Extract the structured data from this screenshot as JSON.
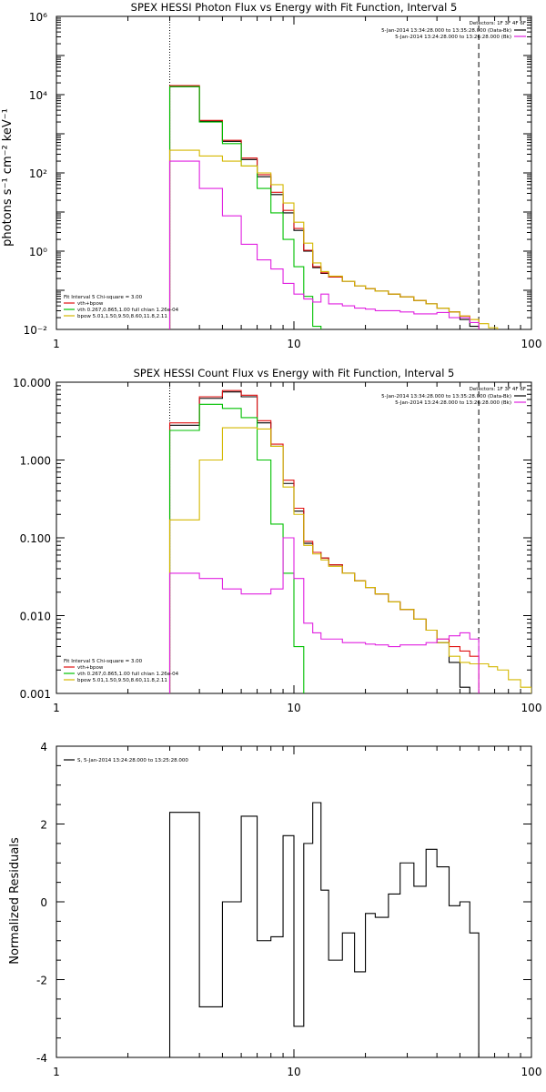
{
  "chart_data": [
    {
      "type": "line",
      "title": "SPEX HESSI Photon Flux vs Energy with Fit Function, Interval 5",
      "xlabel": "",
      "ylabel": "photons s⁻¹ cm⁻² keV⁻¹",
      "xscale": "log",
      "yscale": "log",
      "xlim": [
        1,
        100
      ],
      "ylim": [
        0.01,
        1000000
      ],
      "xtick_labels": [
        "1",
        "10",
        "100"
      ],
      "ytick_labels": [
        "10⁻²",
        "10⁰",
        "10²",
        "10⁴",
        "10⁶"
      ],
      "grid": false,
      "vlines": [
        {
          "x": 3,
          "style": "dotted"
        },
        {
          "x": 60,
          "style": "dashed"
        }
      ],
      "header": {
        "detectors": "Detectors: 1F 3F 4F 6F",
        "rows": [
          {
            "text": "5-Jan-2014 13:34:28.000 to 13:35:28.000 (Data-Bk)",
            "color": "#000000"
          },
          {
            "text": "5-Jan-2014 13:24:28.000 to 13:26:28.000 (Bk)",
            "color": "#e020e0"
          }
        ]
      },
      "legend": {
        "placement": "bottom-left",
        "title": "Fit Interval 5   Chi-square = 3.00",
        "rows": [
          {
            "text": "vth+bpow",
            "color": "#e01010"
          },
          {
            "text": "vth 0.267,0.865,1.00  full chian 1.26e-04",
            "color": "#00c000"
          },
          {
            "text": "bpow 5.01,1.50,9.50,8.60,11.8,2.11",
            "color": "#d4b800"
          }
        ]
      },
      "edges": [
        3,
        4,
        5,
        6,
        7,
        8,
        9,
        10,
        11,
        12,
        13,
        14,
        16,
        18,
        20,
        22,
        25,
        28,
        32,
        36,
        40,
        45,
        50,
        55,
        60,
        66,
        72,
        80,
        90,
        100
      ],
      "series": [
        {
          "color": "#000000",
          "values": [
            16000,
            2100,
            640,
            220,
            80,
            28,
            9.5,
            3.4,
            1.0,
            0.38,
            0.27,
            0.22,
            0.17,
            0.13,
            0.11,
            0.095,
            0.08,
            0.068,
            0.055,
            0.045,
            0.035,
            0.028,
            0.018,
            0.012
          ]
        },
        {
          "color": "#e01010",
          "values": [
            17000,
            2200,
            680,
            240,
            90,
            32,
            11,
            3.8,
            1.05,
            0.4,
            0.28,
            0.22,
            0.17,
            0.13,
            0.11,
            0.095,
            0.08,
            0.068,
            0.055,
            0.045,
            0.035,
            0.028,
            0.022,
            0.018
          ]
        },
        {
          "color": "#00c000",
          "values": [
            16000,
            2000,
            560,
            150,
            40,
            9.5,
            2.0,
            0.4,
            0.07,
            0.012,
            0.002
          ]
        },
        {
          "color": "#d4b800",
          "values": [
            380,
            270,
            200,
            150,
            100,
            50,
            17,
            5.5,
            1.6,
            0.5,
            0.3,
            0.23,
            0.17,
            0.13,
            0.11,
            0.095,
            0.08,
            0.068,
            0.055,
            0.045,
            0.035,
            0.028,
            0.022,
            0.018,
            0.014,
            0.011,
            0.008,
            0.006,
            0.005
          ]
        },
        {
          "color": "#e020e0",
          "values": [
            200,
            40,
            8,
            1.5,
            0.6,
            0.35,
            0.15,
            0.08,
            0.06,
            0.05,
            0.08,
            0.045,
            0.04,
            0.035,
            0.033,
            0.03,
            0.03,
            0.028,
            0.025,
            0.025,
            0.027,
            0.02,
            0.02,
            0.015
          ]
        }
      ]
    },
    {
      "type": "line",
      "title": "SPEX HESSI Count Flux vs Energy with Fit Function, Interval 5",
      "xlabel": "",
      "ylabel": "",
      "xscale": "log",
      "yscale": "log",
      "xlim": [
        1,
        100
      ],
      "ylim": [
        0.001,
        10
      ],
      "xtick_labels": [
        "1",
        "10",
        "100"
      ],
      "ytick_labels": [
        "0.001",
        "0.010",
        "0.100",
        "1.000",
        "10.000"
      ],
      "grid": false,
      "vlines": [
        {
          "x": 3,
          "style": "dotted"
        },
        {
          "x": 60,
          "style": "dashed"
        }
      ],
      "header": {
        "detectors": "Detectors: 1F 3F 4F 6F",
        "rows": [
          {
            "text": "5-Jan-2014 13:34:28.000 to 13:35:28.000 (Data-Bk)",
            "color": "#000000"
          },
          {
            "text": "5-Jan-2014 13:24:28.000 to 13:26:28.000 (Bk)",
            "color": "#e020e0"
          }
        ]
      },
      "legend": {
        "placement": "bottom-left",
        "title": "Fit Interval 5   Chi-square = 3.00",
        "rows": [
          {
            "text": "vth+bpow",
            "color": "#e01010"
          },
          {
            "text": "vth 0.267,0.865,1.00  full chian 1.26e-04",
            "color": "#00c000"
          },
          {
            "text": "bpow 5.01,1.50,9.50,8.60,11.8,2.11",
            "color": "#d4b800"
          }
        ]
      },
      "edges": [
        3,
        4,
        5,
        6,
        7,
        8,
        9,
        10,
        11,
        12,
        13,
        14,
        16,
        18,
        20,
        22,
        25,
        28,
        32,
        36,
        40,
        45,
        50,
        55,
        60,
        66,
        72,
        80,
        90,
        100
      ],
      "series": [
        {
          "color": "#000000",
          "values": [
            2.8,
            6.2,
            7.5,
            6.5,
            3.0,
            1.5,
            0.5,
            0.22,
            0.085,
            0.065,
            0.055,
            0.045,
            0.035,
            0.028,
            0.023,
            0.019,
            0.015,
            0.012,
            0.009,
            0.0065,
            0.0045,
            0.0025,
            0.0012,
            0.0006
          ]
        },
        {
          "color": "#e01010",
          "values": [
            3.0,
            6.5,
            7.8,
            6.8,
            3.2,
            1.6,
            0.55,
            0.24,
            0.09,
            0.065,
            0.055,
            0.045,
            0.035,
            0.028,
            0.023,
            0.019,
            0.015,
            0.012,
            0.009,
            0.0065,
            0.005,
            0.004,
            0.0035,
            0.003
          ]
        },
        {
          "color": "#00c000",
          "values": [
            2.4,
            5.2,
            4.6,
            3.5,
            1.0,
            0.15,
            0.035,
            0.004,
            0.0002
          ]
        },
        {
          "color": "#d4b800",
          "values": [
            0.17,
            1.0,
            2.6,
            2.6,
            2.5,
            1.5,
            0.45,
            0.2,
            0.08,
            0.062,
            0.052,
            0.043,
            0.035,
            0.028,
            0.023,
            0.019,
            0.015,
            0.012,
            0.009,
            0.0065,
            0.0045,
            0.003,
            0.0025,
            0.0024,
            0.0024,
            0.0022,
            0.002,
            0.0015,
            0.0012
          ]
        },
        {
          "color": "#e020e0",
          "values": [
            0.035,
            0.03,
            0.022,
            0.019,
            0.019,
            0.022,
            0.1,
            0.03,
            0.008,
            0.006,
            0.005,
            0.005,
            0.0045,
            0.0045,
            0.0043,
            0.0042,
            0.004,
            0.0042,
            0.0042,
            0.0045,
            0.005,
            0.0055,
            0.006,
            0.005
          ]
        }
      ]
    },
    {
      "type": "line",
      "title": "",
      "xlabel": "",
      "ylabel": "Normalized Residuals",
      "xscale": "log",
      "yscale": "linear",
      "xlim": [
        1,
        100
      ],
      "ylim": [
        -4,
        4
      ],
      "xtick_labels": [
        "1",
        "10",
        "100"
      ],
      "ytick_labels": [
        "-4",
        "-2",
        "0",
        "2",
        "4"
      ],
      "grid": false,
      "legend": {
        "placement": "top-left",
        "rows": [
          {
            "text": "S, 5-Jan-2014 13:24:28.000 to 13:25:28.000",
            "color": "#000000"
          }
        ]
      },
      "edges": [
        3,
        4,
        5,
        6,
        7,
        8,
        9,
        10,
        11,
        12,
        13,
        14,
        16,
        18,
        20,
        22,
        25,
        28,
        32,
        36,
        40,
        45,
        50,
        55,
        60
      ],
      "series": [
        {
          "color": "#000000",
          "values": [
            2.3,
            -2.7,
            0.0,
            2.2,
            -1.0,
            -0.9,
            1.7,
            -3.2,
            1.5,
            2.55,
            0.3,
            -1.5,
            -0.8,
            -1.8,
            -0.3,
            -0.4,
            0.2,
            1.0,
            0.4,
            1.35,
            0.9,
            -0.1,
            0.0,
            -0.8
          ]
        }
      ]
    }
  ]
}
